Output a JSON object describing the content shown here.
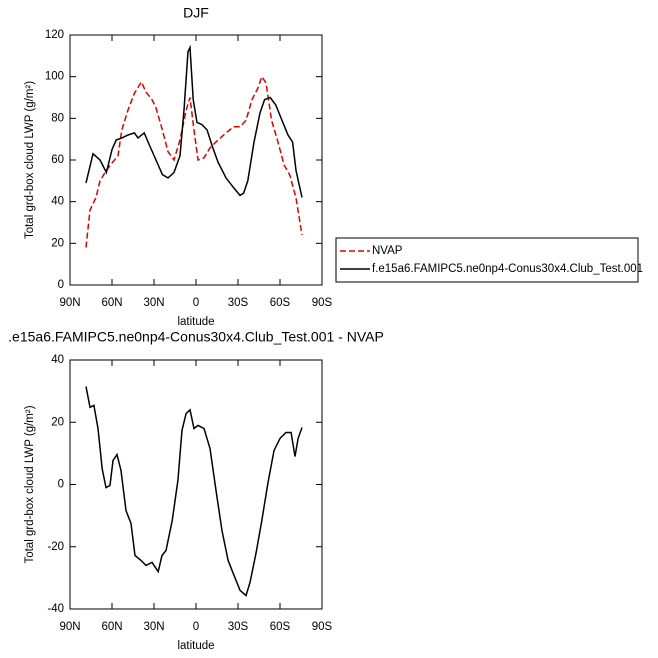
{
  "chart_data": [
    {
      "type": "line",
      "title": "DJF",
      "xlabel": "latitude",
      "ylabel": "Total grd-box cloud LWP (g/m²)",
      "xlim": [
        90,
        -90
      ],
      "xticks": [
        {
          "value": 90,
          "label": "90N"
        },
        {
          "value": 60,
          "label": "60N"
        },
        {
          "value": 30,
          "label": "30N"
        },
        0,
        {
          "value": -30,
          "label": "30S"
        },
        {
          "value": -60,
          "label": "60S"
        },
        {
          "value": -90,
          "label": "90S"
        }
      ],
      "ylim": [
        0,
        120
      ],
      "yticks": [
        0,
        20,
        40,
        60,
        80,
        100,
        120
      ],
      "legend": "outside-right",
      "series": [
        {
          "name": "NVAP",
          "color": "#e00000",
          "dash": true,
          "x": [
            78.6,
            75.7,
            71.4,
            68.6,
            64,
            60,
            55.7,
            53,
            48.6,
            44,
            39,
            35.7,
            31.4,
            28.6,
            24,
            20,
            15.7,
            11.4,
            7,
            4.3,
            1.4,
            -1.4,
            -5.7,
            -10,
            -15.7,
            -21.4,
            -27,
            -31.4,
            -35.7,
            -40,
            -44.3,
            -47,
            -50,
            -54,
            -58.6,
            -62.9,
            -67,
            -71.4,
            -75.7
          ],
          "values": [
            18,
            36,
            42,
            50,
            55,
            58.6,
            62,
            74.4,
            84,
            92,
            97.5,
            92.6,
            89,
            85,
            74.4,
            64,
            60,
            69.6,
            84,
            90,
            74.4,
            60,
            61,
            65.8,
            69.6,
            73,
            76,
            76,
            79,
            89,
            94.6,
            100,
            97,
            79,
            68.6,
            57.6,
            52.8,
            41.8,
            24
          ]
        },
        {
          "name": "f.e15a6.FAMIPC5.ne0np4-Conus30x4.Club_Test.001",
          "color": "#000000",
          "dash": false,
          "x": [
            78.6,
            73.6,
            68.6,
            64,
            60,
            57,
            53,
            48.6,
            44,
            41.4,
            37,
            33,
            28.6,
            24,
            20,
            15.7,
            11.4,
            8.6,
            5.7,
            4.3,
            2,
            -0.7,
            -4.3,
            -7.9,
            -11.4,
            -15.7,
            -21.4,
            -27,
            -31.4,
            -34,
            -37,
            -41.4,
            -45.7,
            -49,
            -53,
            -57,
            -61.4,
            -65.7,
            -69,
            -71.4,
            -75.7
          ],
          "values": [
            49,
            63,
            60,
            54,
            65,
            69.6,
            70.6,
            72,
            73,
            70.6,
            73,
            66.7,
            60,
            53,
            51.4,
            54,
            62,
            84,
            112,
            114,
            89,
            78,
            77,
            74.4,
            67,
            59,
            51.4,
            46.6,
            43,
            44,
            50,
            68.6,
            82.6,
            89,
            90,
            86.4,
            79,
            72,
            68.6,
            55,
            42
          ]
        }
      ]
    },
    {
      "type": "line",
      "title": ".e15a6.FAMIPC5.ne0np4-Conus30x4.Club_Test.001 - NVAP",
      "xlabel": "latitude",
      "ylabel": "Total grd-box cloud LWP (g/m²)",
      "xlim": [
        90,
        -90
      ],
      "xticks": [
        {
          "value": 90,
          "label": "90N"
        },
        {
          "value": 60,
          "label": "60N"
        },
        {
          "value": 30,
          "label": "30N"
        },
        0,
        {
          "value": -30,
          "label": "30S"
        },
        {
          "value": -60,
          "label": "60S"
        },
        {
          "value": -90,
          "label": "90S"
        }
      ],
      "ylim": [
        -40,
        40
      ],
      "yticks": [
        -40,
        -20,
        0,
        20,
        40
      ],
      "series": [
        {
          "color": "#000000",
          "dash": false,
          "x": [
            78.6,
            75.7,
            72.9,
            70,
            67,
            64.3,
            61.4,
            59.3,
            56.4,
            53.6,
            50,
            46.4,
            43.6,
            39.3,
            35.7,
            31.4,
            27,
            24.3,
            21.4,
            17,
            12.9,
            10,
            7.1,
            4.3,
            1.4,
            -1.4,
            -5.7,
            -10,
            -14.3,
            -18.6,
            -22.9,
            -27,
            -31.4,
            -35.7,
            -38.6,
            -42.9,
            -47,
            -51.4,
            -55.7,
            -60,
            -64.3,
            -67.9,
            -70.7,
            -72.9,
            -75.7
          ],
          "values": [
            31.5,
            24.8,
            25.4,
            18,
            5,
            -1,
            -0.3,
            7.7,
            9.6,
            4.5,
            -8.4,
            -12.5,
            -22.8,
            -24.4,
            -26,
            -25,
            -28,
            -22.8,
            -21.2,
            -11.6,
            1.3,
            17.4,
            22.8,
            24,
            18,
            19,
            18,
            11.6,
            -1.9,
            -14.8,
            -24.4,
            -29,
            -34,
            -35.7,
            -31.5,
            -21.9,
            -11.6,
            0.6,
            10.9,
            14.8,
            16.7,
            16.7,
            9,
            14.8,
            18.3
          ]
        }
      ]
    }
  ]
}
